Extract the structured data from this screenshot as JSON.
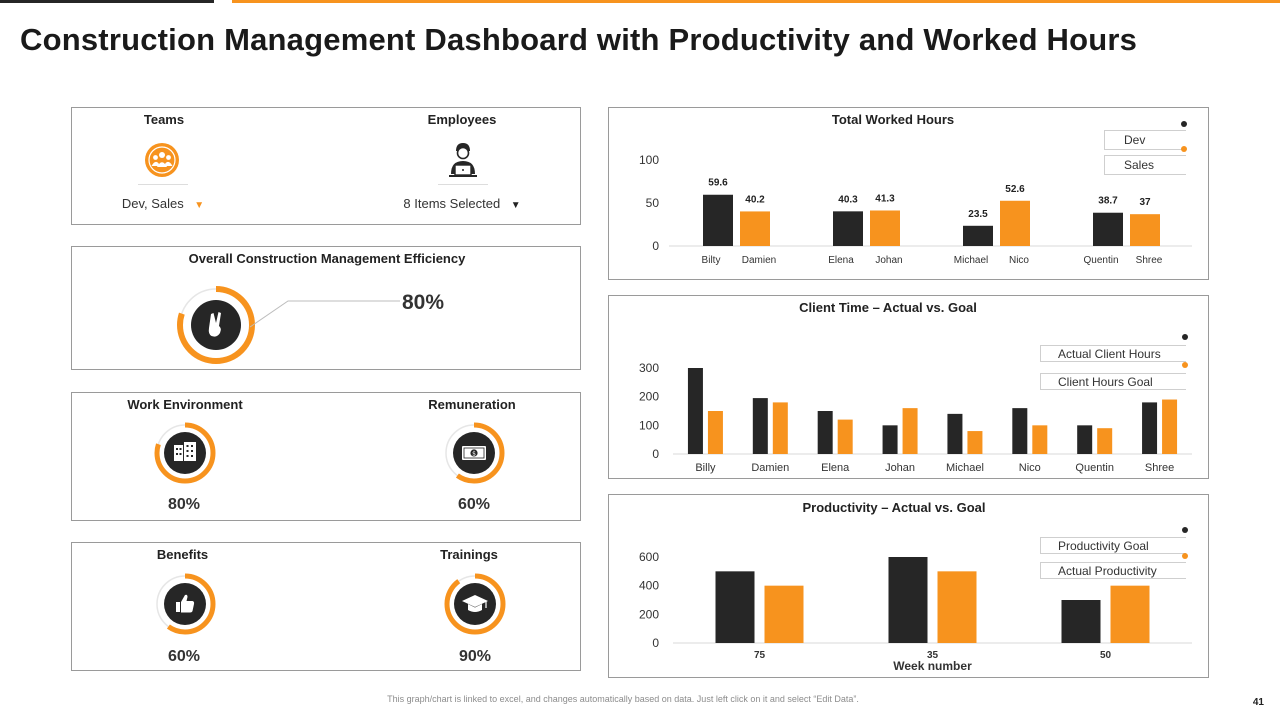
{
  "header": {
    "title": "Construction Management Dashboard with Productivity and Worked Hours"
  },
  "colors": {
    "dark": "#262626",
    "orange": "#f7931e",
    "track": "#e6e6e6"
  },
  "filters": {
    "teams": {
      "label": "Teams",
      "value": "Dev,  Sales",
      "icon": "team-icon"
    },
    "employees": {
      "label": "Employees",
      "value": "8 Items Selected",
      "icon": "employee-laptop-icon"
    }
  },
  "efficiency": {
    "label": "Overall Construction Management Efficiency",
    "value_text": "80%",
    "value": 80,
    "icon": "victory-hand-icon"
  },
  "metrics": [
    {
      "label": "Work Environment",
      "value_text": "80%",
      "value": 80,
      "icon": "office-building-icon"
    },
    {
      "label": "Remuneration",
      "value_text": "60%",
      "value": 60,
      "icon": "money-bill-icon"
    },
    {
      "label": "Benefits",
      "value_text": "60%",
      "value": 60,
      "icon": "thumbs-up-icon"
    },
    {
      "label": "Trainings",
      "value_text": "90%",
      "value": 90,
      "icon": "graduation-cap-icon"
    }
  ],
  "footer": {
    "note": "This graph/chart is linked to excel, and changes automatically based on data. Just left click on it and select “Edit Data”.",
    "page": "41"
  },
  "chart_data": [
    {
      "type": "bar",
      "title": "Total Worked Hours",
      "categories": [
        "Bilty",
        "Damien",
        "Elena",
        "Johan",
        "Michael",
        "Nico",
        "Quentin",
        "Shree"
      ],
      "values": [
        59.6,
        40.2,
        40.3,
        41.3,
        23.5,
        52.6,
        38.7,
        37
      ],
      "value_labels": [
        "59.6",
        "40.2",
        "40.3",
        "41.3",
        "23.5",
        "52.6",
        "38.7",
        "37"
      ],
      "bar_series": [
        "Dev",
        "Sales",
        "Dev",
        "Sales",
        "Dev",
        "Sales",
        "Dev",
        "Sales"
      ],
      "legend": [
        "Dev",
        "Sales"
      ],
      "yticks": [
        "0",
        "50",
        "100"
      ],
      "ylim": [
        0,
        100
      ],
      "legend_position": "top-right"
    },
    {
      "type": "bar",
      "title": "Client Time – Actual vs. Goal",
      "categories": [
        "Billy",
        "Damien",
        "Elena",
        "Johan",
        "Michael",
        "Nico",
        "Quentin",
        "Shree"
      ],
      "series": [
        {
          "name": "Actual Client Hours",
          "values": [
            300,
            195,
            150,
            100,
            140,
            160,
            100,
            180
          ]
        },
        {
          "name": "Client Hours Goal",
          "values": [
            150,
            180,
            120,
            160,
            80,
            100,
            90,
            190
          ]
        }
      ],
      "yticks": [
        "0",
        "100",
        "200",
        "300"
      ],
      "ylim": [
        0,
        300
      ],
      "legend_position": "top-right"
    },
    {
      "type": "bar",
      "title": "Productivity – Actual vs. Goal",
      "categories": [
        "75",
        "35",
        "50"
      ],
      "xlabel": "Week number",
      "series": [
        {
          "name": "Productivity Goal",
          "values": [
            500,
            600,
            300
          ]
        },
        {
          "name": "Actual Productivity",
          "values": [
            400,
            500,
            400
          ]
        }
      ],
      "yticks": [
        "0",
        "200",
        "400",
        "600"
      ],
      "ylim": [
        0,
        600
      ],
      "legend_position": "top-right"
    }
  ]
}
